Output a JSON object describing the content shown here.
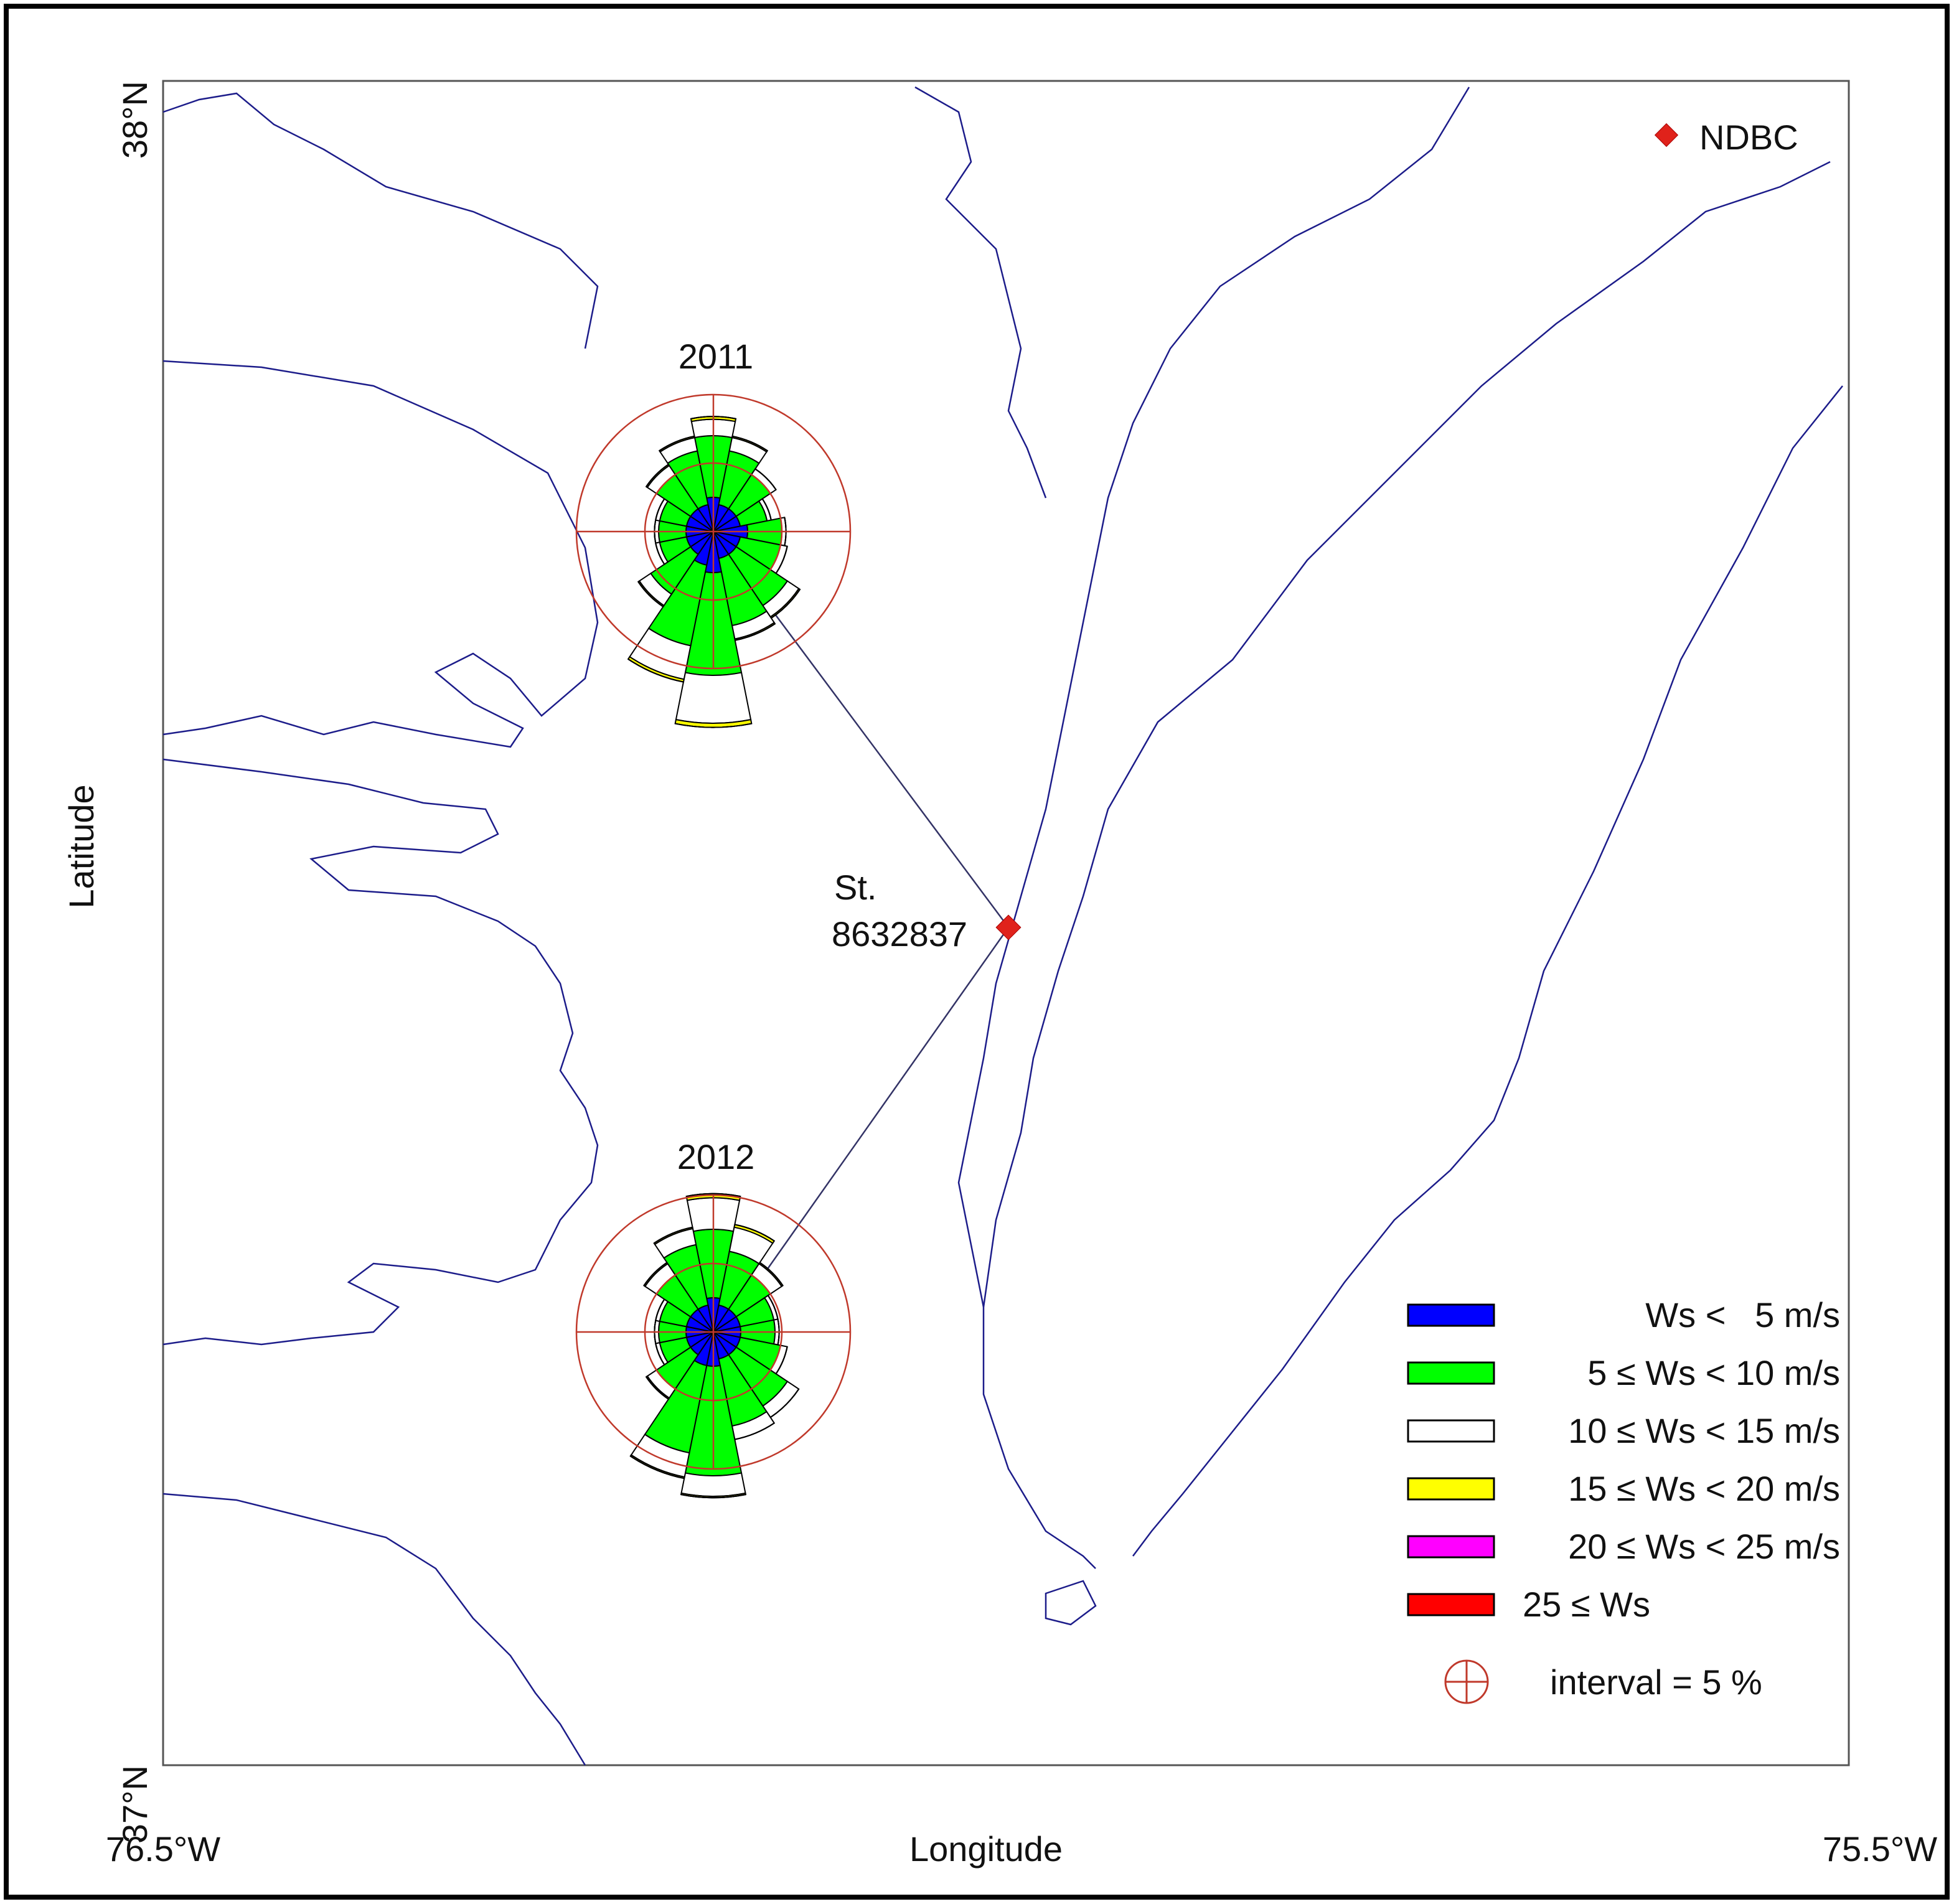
{
  "map": {
    "lat_labels": [
      "38°N",
      "37°N"
    ],
    "lon_labels": [
      "76.5°W",
      "75.5°W"
    ],
    "x_axis_label": "Longitude",
    "y_axis_label": "Latitude",
    "ndbc_label": "NDBC",
    "station_label": [
      "St.",
      "8632837"
    ],
    "ring_interval": 5,
    "interval_label": "interval = 5 %",
    "speed_classes": [
      {
        "name": "Ws <   5 m/s",
        "color": "#0000ff"
      },
      {
        "name": "5 ≤ Ws < 10 m/s",
        "color": "#00ff00"
      },
      {
        "name": "10 ≤ Ws < 15 m/s",
        "color": "#ffffff"
      },
      {
        "name": "15 ≤ Ws < 20 m/s",
        "color": "#ffff00"
      },
      {
        "name": "20 ≤ Ws < 25 m/s",
        "color": "#ff00ff"
      },
      {
        "name": "25 ≤ Ws",
        "color": "#ff0000"
      }
    ],
    "roses": [
      {
        "title": "2011",
        "series": [
          [
            2.5,
            2,
            2,
            2,
            2.5,
            2,
            2,
            2,
            3,
            2.5,
            2,
            2,
            2,
            2,
            2,
            2
          ],
          [
            4.5,
            4,
            3,
            2,
            2.5,
            3,
            4.5,
            5,
            7.5,
            6,
            3.5,
            2,
            2,
            2,
            3,
            4
          ],
          [
            1.2,
            1,
            0.5,
            0.3,
            0.3,
            0.5,
            1,
            1,
            3.5,
            2.5,
            1,
            0.3,
            0.3,
            0.3,
            0.8,
            1
          ],
          [
            0.2,
            0.1,
            0,
            0,
            0,
            0,
            0.1,
            0.1,
            0.3,
            0.2,
            0.1,
            0,
            0,
            0,
            0.1,
            0.1
          ],
          [
            0,
            0,
            0,
            0,
            0,
            0,
            0,
            0,
            0,
            0,
            0,
            0,
            0,
            0,
            0,
            0
          ],
          [
            0,
            0,
            0,
            0,
            0,
            0,
            0,
            0,
            0,
            0,
            0,
            0,
            0,
            0,
            0,
            0
          ]
        ]
      },
      {
        "title": "2012",
        "series": [
          [
            2.5,
            2,
            2,
            2,
            2,
            2,
            2,
            2,
            2.5,
            2.5,
            2,
            2,
            2,
            2,
            2,
            2
          ],
          [
            5,
            4,
            3,
            2.5,
            2.5,
            3,
            4.5,
            5,
            8,
            6.5,
            3,
            2,
            2,
            2,
            3,
            4.5
          ],
          [
            2.3,
            1.8,
            1,
            0.3,
            0.3,
            0.5,
            1,
            1,
            1.5,
            1.8,
            0.8,
            0.3,
            0.3,
            0.3,
            1,
            1.2
          ],
          [
            0.3,
            0.2,
            0.1,
            0,
            0,
            0,
            0,
            0,
            0.1,
            0.1,
            0.1,
            0,
            0,
            0,
            0.1,
            0.1
          ],
          [
            0,
            0,
            0,
            0,
            0,
            0,
            0,
            0,
            0,
            0,
            0,
            0,
            0,
            0,
            0,
            0
          ],
          [
            0,
            0,
            0,
            0,
            0,
            0,
            0,
            0,
            0,
            0,
            0,
            0,
            0,
            0,
            0,
            0
          ]
        ]
      }
    ]
  }
}
